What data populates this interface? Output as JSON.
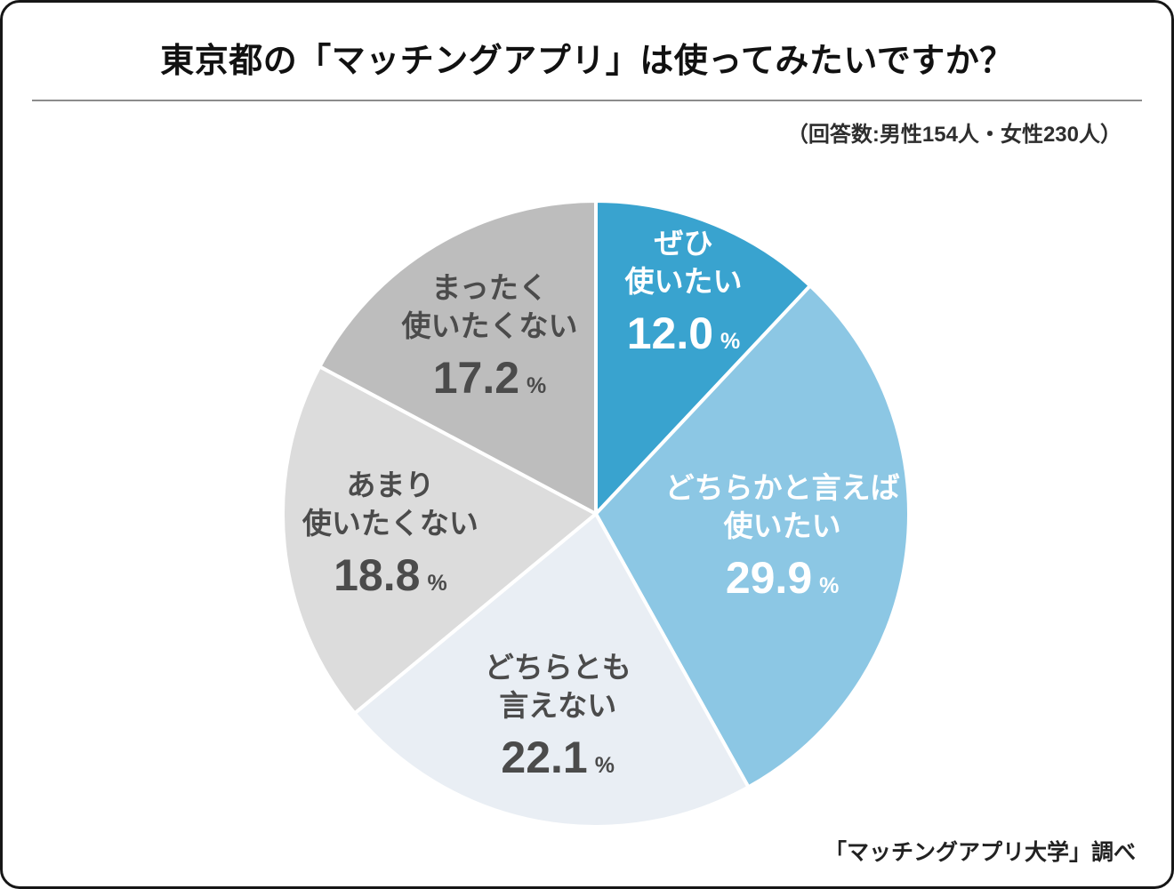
{
  "chart_data": {
    "type": "pie",
    "title": "東京都の「マッチングアプリ」は使ってみたいですか？",
    "subtitle": "（回答数:男性154人・女性230人）",
    "source": "「マッチングアプリ大学」調べ",
    "unit": "%",
    "total": 100.0,
    "start_angle_deg": 0,
    "direction": "clockwise",
    "legend": "none",
    "categories": [
      "ぜひ使いたい",
      "どちらかと言えば使いたい",
      "どちらとも言えない",
      "あまり使いたくない",
      "まったく使いたくない"
    ],
    "values": [
      12.0,
      29.9,
      22.1,
      18.8,
      17.2
    ],
    "slices": [
      {
        "label_lines": [
          "ぜひ",
          "使いたい"
        ],
        "value": 12.0,
        "color": "#39A3CF",
        "text_color": "#FFFFFF",
        "label_r": 0.76
      },
      {
        "label_lines": [
          "どちらかと言えば",
          "使いたい"
        ],
        "value": 29.9,
        "color": "#8CC7E4",
        "text_color": "#FFFFFF",
        "label_r": 0.6
      },
      {
        "label_lines": [
          "どちらとも",
          "言えない"
        ],
        "value": 22.1,
        "color": "#E9EEF4",
        "text_color": "#4B4B4B",
        "label_r": 0.66
      },
      {
        "label_lines": [
          "あまり",
          "使いたくない"
        ],
        "value": 18.8,
        "color": "#DCDCDC",
        "text_color": "#4B4B4B",
        "label_r": 0.66
      },
      {
        "label_lines": [
          "まったく",
          "使いたくない"
        ],
        "value": 17.2,
        "color": "#BDBDBD",
        "text_color": "#4B4B4B",
        "label_r": 0.66
      }
    ]
  }
}
